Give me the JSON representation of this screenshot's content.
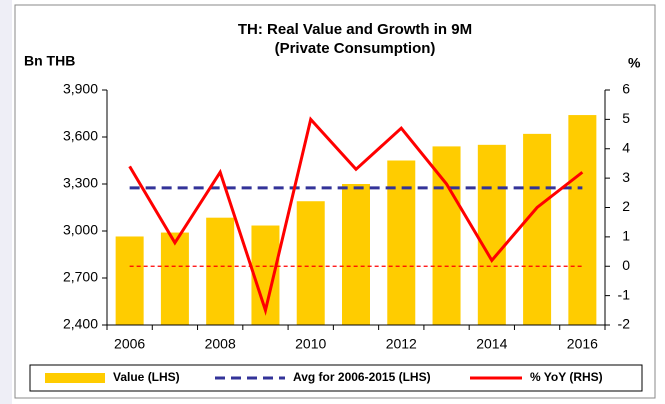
{
  "chart_data": {
    "type": "bar",
    "title": "TH: Real Value and Growth in 9M",
    "subtitle": "(Private Consumption)",
    "ylabel": "Bn THB",
    "y2label": "%",
    "categories": [
      "2006",
      null,
      "2008",
      null,
      "2010",
      null,
      "2012",
      null,
      "2014",
      null,
      "2016"
    ],
    "series": [
      {
        "name": "Value (LHS)",
        "type": "bar",
        "color": "#ffcc00",
        "values": [
          2965,
          2990,
          3085,
          3035,
          3190,
          3300,
          3450,
          3540,
          3550,
          3620,
          3740
        ]
      },
      {
        "name": "Avg for 2006-2015 (LHS)",
        "type": "dashed-line",
        "color": "#333399",
        "values": [
          3275,
          3275,
          3275,
          3275,
          3275,
          3275,
          3275,
          3275,
          3275,
          3275,
          3275
        ]
      },
      {
        "name": "% YoY (RHS)",
        "type": "line",
        "axis": "y2",
        "color": "#ff0000",
        "values": [
          3.4,
          0.8,
          3.2,
          -1.5,
          5.0,
          3.3,
          4.7,
          2.8,
          0.2,
          2.0,
          3.2
        ]
      }
    ],
    "ylim": [
      2400,
      3900
    ],
    "yticks": [
      {
        "value": 2400,
        "label": "2,400"
      },
      {
        "value": 2700,
        "label": "2,700"
      },
      {
        "value": 3000,
        "label": "3,000"
      },
      {
        "value": 3300,
        "label": "3,300"
      },
      {
        "value": 3600,
        "label": "3,600"
      },
      {
        "value": 3900,
        "label": "3,900"
      }
    ],
    "y2lim": [
      -2,
      6
    ],
    "y2ticks": [
      -2,
      -1,
      0,
      1,
      2,
      3,
      4,
      5,
      6
    ],
    "y2_zero_line": true,
    "legend": "bottom"
  }
}
